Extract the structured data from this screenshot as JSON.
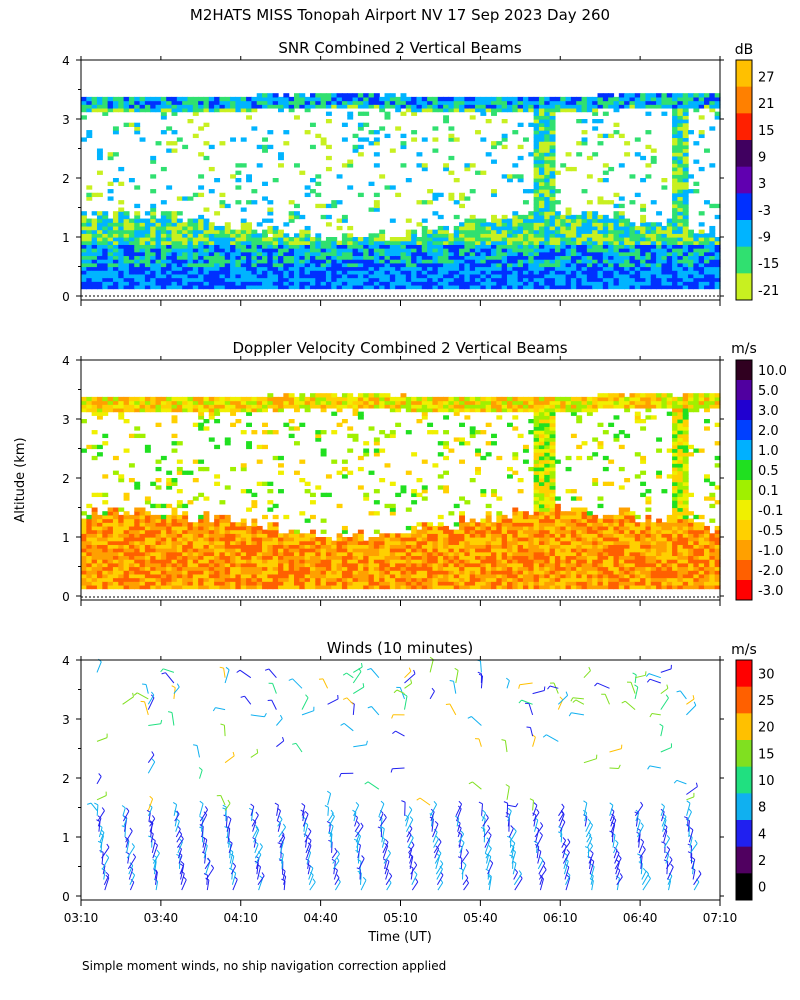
{
  "figure_title": "M2HATS MISS Tonopah Airport NV  17 Sep 2023 Day 260",
  "shared": {
    "ylabel": "Altitude (km)",
    "xlabel": "Time (UT)",
    "x_ticks": [
      "03:10",
      "03:40",
      "04:10",
      "04:40",
      "05:10",
      "05:40",
      "06:10",
      "06:40",
      "07:10"
    ],
    "y_ticks": [
      "0",
      "1",
      "2",
      "3",
      "4"
    ],
    "footnote": "Simple moment winds, no ship navigation correction applied"
  },
  "chart_data": [
    {
      "type": "heatmap",
      "title": "SNR Combined 2 Vertical Beams",
      "xlabel": "Time (UT)",
      "ylabel": "Altitude (km)",
      "x_range": [
        "03:10",
        "07:10"
      ],
      "ylim": [
        0,
        4
      ],
      "colorbar_unit": "dB",
      "colorbar_labels": [
        "27",
        "21",
        "15",
        "9",
        "3",
        "-3",
        "-9",
        "-15",
        "-21"
      ],
      "colorbar_colors": [
        "#ffc000",
        "#ff8000",
        "#ff2000",
        "#400060",
        "#6000b0",
        "#0030ff",
        "#00b4ff",
        "#30e070",
        "#c8f020"
      ],
      "data_top_km": 3.4,
      "data_bottom_km": 0.15
    },
    {
      "type": "heatmap",
      "title": "Doppler Velocity Combined 2 Vertical Beams",
      "xlabel": "Time (UT)",
      "ylabel": "Altitude (km)",
      "x_range": [
        "03:10",
        "07:10"
      ],
      "ylim": [
        0,
        4
      ],
      "colorbar_unit": "m/s",
      "colorbar_labels": [
        "10.0",
        "5.0",
        "3.0",
        "2.0",
        "1.0",
        "0.5",
        "0.1",
        "-0.1",
        "-0.5",
        "-1.0",
        "-2.0",
        "-3.0"
      ],
      "colorbar_colors": [
        "#300020",
        "#5000a0",
        "#2000d0",
        "#0040ff",
        "#00b0ff",
        "#20e020",
        "#a0f000",
        "#f0f000",
        "#ffd000",
        "#ffa000",
        "#ff6000",
        "#ff0000"
      ],
      "data_top_km": 3.4,
      "data_bottom_km": 0.15
    },
    {
      "type": "wind_barbs",
      "title": "Winds (10 minutes)",
      "xlabel": "Time (UT)",
      "ylabel": "Altitude (km)",
      "x_range": [
        "03:10",
        "07:10"
      ],
      "ylim": [
        0,
        4
      ],
      "colorbar_unit": "m/s",
      "colorbar_labels": [
        "30",
        "25",
        "20",
        "15",
        "10",
        "8",
        "4",
        "2",
        "0"
      ],
      "colorbar_colors": [
        "#ff0000",
        "#ff6000",
        "#ffc000",
        "#80e020",
        "#20e080",
        "#10b0f0",
        "#2020f0",
        "#500060",
        "#000000"
      ]
    }
  ]
}
